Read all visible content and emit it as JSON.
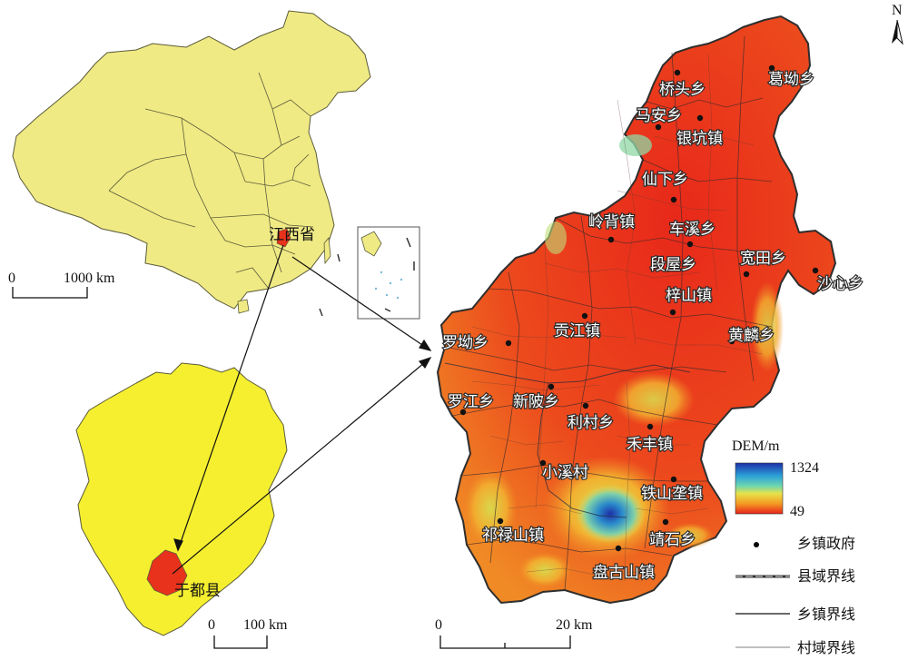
{
  "colors": {
    "china_fill": "#f0ea84",
    "china_border": "#5a5a3a",
    "jiangxi_fill": "#f5ef2f",
    "yudu_fill": "#e8321c",
    "dem_high": "#1e2fa8",
    "dem_low": "#e8281a"
  },
  "china_map": {
    "province_label": "江西省",
    "scale": {
      "zero": "0",
      "distance": "1000 km"
    }
  },
  "jiangxi_map": {
    "county_label": "于都县",
    "scale": {
      "zero": "0",
      "distance": "100 km"
    }
  },
  "dem_map": {
    "scale": {
      "zero": "0",
      "distance": "20 km"
    },
    "north_label": "N",
    "towns": [
      {
        "name": "葛坳乡"
      },
      {
        "name": "桥头乡"
      },
      {
        "name": "马安乡"
      },
      {
        "name": "银坑镇"
      },
      {
        "name": "仙下乡"
      },
      {
        "name": "岭背镇"
      },
      {
        "name": "车溪乡"
      },
      {
        "name": "宽田乡"
      },
      {
        "name": "段屋乡"
      },
      {
        "name": "沙心乡"
      },
      {
        "name": "梓山镇"
      },
      {
        "name": "罗坳乡"
      },
      {
        "name": "贡江镇"
      },
      {
        "name": "黄麟乡"
      },
      {
        "name": "罗江乡"
      },
      {
        "name": "新陂乡"
      },
      {
        "name": "利村乡"
      },
      {
        "name": "禾丰镇"
      },
      {
        "name": "小溪村"
      },
      {
        "name": "铁山垄镇"
      },
      {
        "name": "祁禄山镇"
      },
      {
        "name": "靖石乡"
      },
      {
        "name": "盘古山镇"
      }
    ]
  },
  "legend": {
    "title": "DEM/m",
    "max": "1324",
    "min": "49",
    "items": [
      {
        "label": "乡镇政府",
        "symbol": "dot"
      },
      {
        "label": "县域界线",
        "symbol": "county-line"
      },
      {
        "label": "乡镇界线",
        "symbol": "town-line"
      },
      {
        "label": "村域界线",
        "symbol": "village-line"
      }
    ]
  }
}
